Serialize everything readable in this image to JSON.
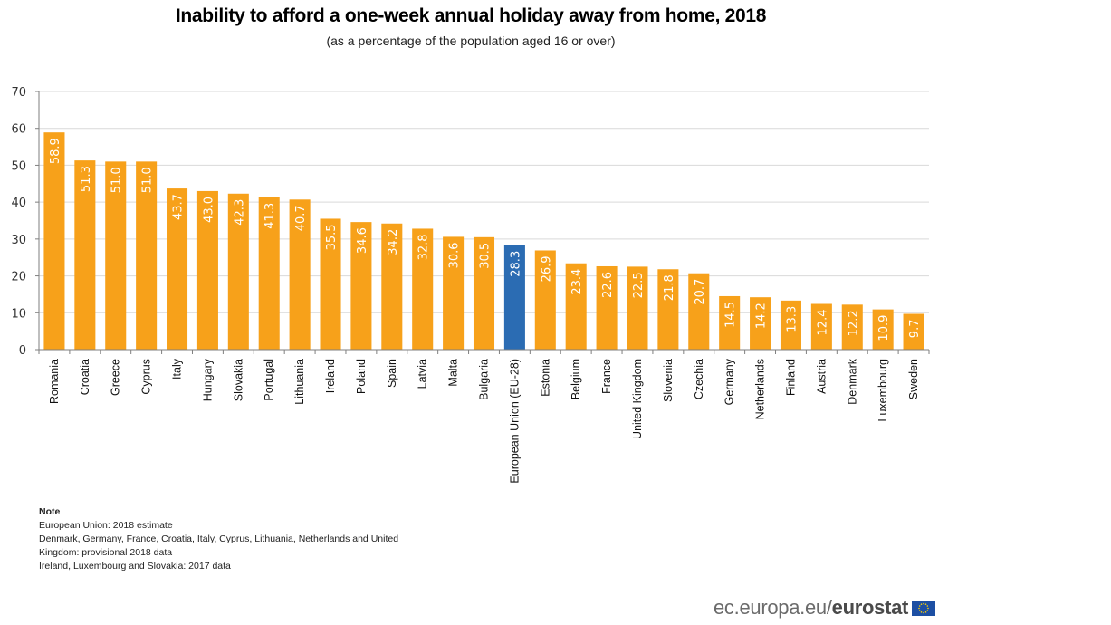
{
  "header": {
    "title": "Inability to afford a one-week annual holiday away from home, 2018",
    "subtitle": "(as a percentage of the population aged 16 or over)"
  },
  "chart_data": {
    "type": "bar",
    "title": "Inability to afford a one-week annual holiday away from home, 2018",
    "subtitle": "(as a percentage of the population aged 16 or over)",
    "xlabel": "",
    "ylabel": "",
    "ylim": [
      0,
      70
    ],
    "yticks": [
      0,
      10,
      20,
      30,
      40,
      50,
      60,
      70
    ],
    "grid": true,
    "legend": "none",
    "categories": [
      "Romania",
      "Croatia",
      "Greece",
      "Cyprus",
      "Italy",
      "Hungary",
      "Slovakia",
      "Portugal",
      "Lithuania",
      "Ireland",
      "Poland",
      "Spain",
      "Latvia",
      "Malta",
      "Bulgaria",
      "European Union (EU-28)",
      "Estonia",
      "Belgium",
      "France",
      "United Kingdom",
      "Slovenia",
      "Czechia",
      "Germany",
      "Netherlands",
      "Finland",
      "Austria",
      "Denmark",
      "Luxembourg",
      "Sweden"
    ],
    "values": [
      58.9,
      51.3,
      51.0,
      51.0,
      43.7,
      43.0,
      42.3,
      41.3,
      40.7,
      35.5,
      34.6,
      34.2,
      32.8,
      30.6,
      30.5,
      28.3,
      26.9,
      23.4,
      22.6,
      22.5,
      21.8,
      20.7,
      14.5,
      14.2,
      13.3,
      12.4,
      12.2,
      10.9,
      9.7
    ],
    "labels": [
      "58.9",
      "51.3",
      "51.0",
      "51.0",
      "43.7",
      "43.0",
      "42.3",
      "41.3",
      "40.7",
      "35.5",
      "34.6",
      "34.2",
      "32.8",
      "30.6",
      "30.5",
      "28.3",
      "26.9",
      "23.4",
      "22.6",
      "22.5",
      "21.8",
      "20.7",
      "14.5",
      "14.2",
      "13.3",
      "12.4",
      "12.2",
      "10.9",
      "9.7"
    ],
    "highlight": "European Union (EU-28)",
    "colors": {
      "default": "#f7a11a",
      "highlight": "#2b6cb3",
      "grid": "#d9d9d9",
      "axis": "#7f7f7f",
      "label": "#ffffff"
    }
  },
  "note": {
    "title": "Note",
    "lines": [
      "European Union: 2018  estimate",
      "Denmark, Germany, France, Croatia, Italy, Cyprus, Lithuania, Netherlands and United",
      "Kingdom: provisional 2018 data",
      "Ireland, Luxembourg and Slovakia: 2017 data"
    ]
  },
  "footer": {
    "site": "ec.europa.eu/",
    "brand": "eurostat",
    "logo_icon": "eu-flag-icon"
  }
}
